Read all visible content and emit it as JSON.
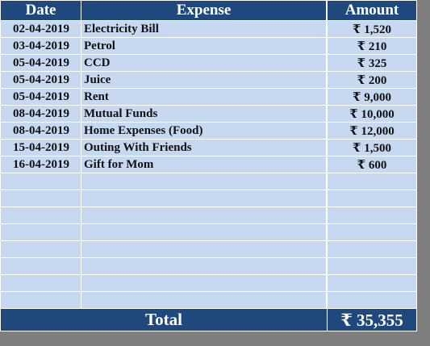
{
  "table": {
    "header": [
      "Date",
      "Expense",
      "Amount"
    ],
    "rows": [
      [
        "02-04-2019",
        "Electricity Bill",
        "₹ 1,520"
      ],
      [
        "03-04-2019",
        "Petrol",
        "₹ 210"
      ],
      [
        "05-04-2019",
        "CCD",
        "₹ 325"
      ],
      [
        "05-04-2019",
        "Juice",
        "₹ 200"
      ],
      [
        "05-04-2019",
        "Rent",
        "₹ 9,000"
      ],
      [
        "08-04-2019",
        "Mutual Funds",
        "₹ 10,000"
      ],
      [
        "08-04-2019",
        "Home Expenses (Food)",
        "₹ 12,000"
      ],
      [
        "15-04-2019",
        "Outing With Friends",
        "₹ 1,500"
      ],
      [
        "16-04-2019",
        "Gift for Mom",
        "₹ 600"
      ]
    ],
    "total_label": "Total",
    "total": "₹ 35,355"
  }
}
